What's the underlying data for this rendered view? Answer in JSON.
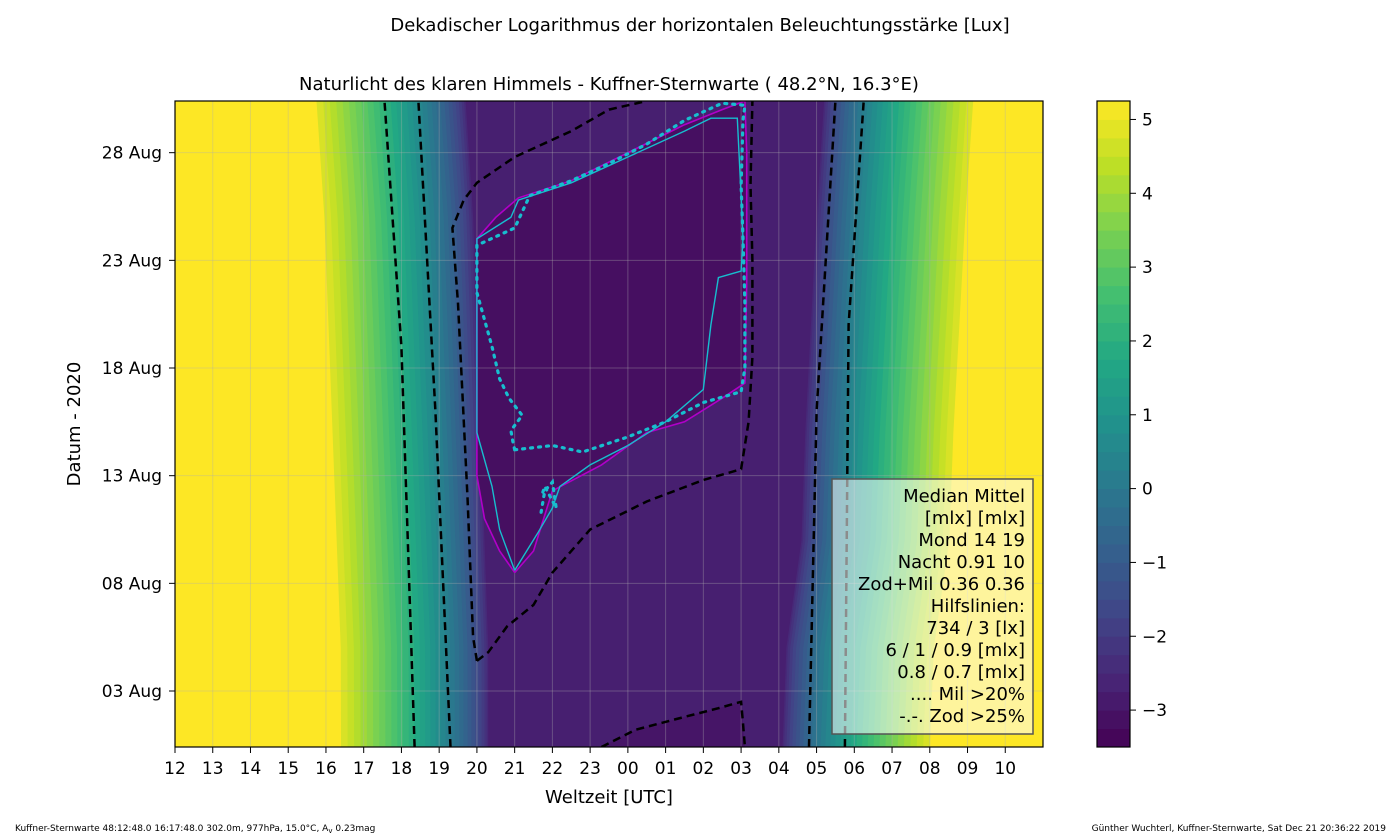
{
  "chart_data": {
    "type": "heatmap",
    "suptitle": "Dekadischer Logarithmus der horizontalen Beleuchtungsstärke [Lux]",
    "title": "Naturlicht des klaren Himmels - Kuffner-Sternwarte ( 48.2°N, 16.3°E)",
    "xlabel": "Weltzeit [UTC]",
    "ylabel": "Datum - 2020",
    "xlim": [
      12,
      35
    ],
    "x_ticks": [
      "12",
      "13",
      "14",
      "15",
      "16",
      "17",
      "18",
      "19",
      "20",
      "21",
      "22",
      "23",
      "00",
      "01",
      "02",
      "03",
      "04",
      "05",
      "06",
      "07",
      "08",
      "09",
      "10"
    ],
    "y_ticks": [
      "03 Aug",
      "08 Aug",
      "13 Aug",
      "18 Aug",
      "23 Aug",
      "28 Aug"
    ],
    "y_tick_days": [
      3,
      8,
      13,
      18,
      23,
      28
    ],
    "ylim_days": [
      0.4,
      30.4
    ],
    "colorbar": {
      "range": [
        -3.5,
        5.25
      ],
      "ticks": [
        "5",
        "4",
        "3",
        "2",
        "1",
        "0",
        "−1",
        "−2",
        "−3"
      ],
      "tick_values": [
        5,
        4,
        3,
        2,
        1,
        0,
        -1,
        -2,
        -3
      ],
      "colors": [
        "#440154",
        "#482475",
        "#414487",
        "#355f8d",
        "#2a788e",
        "#21918c",
        "#22a884",
        "#44bf70",
        "#7ad151",
        "#bddf26",
        "#fde725"
      ]
    },
    "band_edges_hours": [
      {
        "day": 0.4,
        "dusk": 20.0,
        "dawn": 28.4
      },
      {
        "day": 5.0,
        "dusk": 20.0,
        "dawn": 28.5
      },
      {
        "day": 10.0,
        "dusk": 19.9,
        "dawn": 28.9
      },
      {
        "day": 15.0,
        "dusk": 19.8,
        "dawn": 29.0
      },
      {
        "day": 20.0,
        "dusk": 19.7,
        "dawn": 29.15
      },
      {
        "day": 25.0,
        "dusk": 19.6,
        "dawn": 29.3
      },
      {
        "day": 30.4,
        "dusk": 19.4,
        "dawn": 29.5
      }
    ],
    "dashed_lines": [
      {
        "points": [
          [
            18.35,
            0.4
          ],
          [
            18.0,
            19.0
          ],
          [
            17.55,
            30.4
          ]
        ]
      },
      {
        "points": [
          [
            19.3,
            0.4
          ],
          [
            18.9,
            16.0
          ],
          [
            18.45,
            30.4
          ]
        ]
      },
      {
        "points": [
          [
            28.8,
            0.4
          ],
          [
            29.0,
            16.0
          ],
          [
            29.5,
            30.4
          ]
        ]
      },
      {
        "points": [
          [
            29.75,
            0.4
          ],
          [
            29.85,
            20.0
          ],
          [
            30.25,
            30.4
          ]
        ]
      },
      {
        "points": [
          [
            20.0,
            4.4
          ],
          [
            19.9,
            5.5
          ],
          [
            19.75,
            12.0
          ],
          [
            19.5,
            21.0
          ],
          [
            19.35,
            24.5
          ],
          [
            19.65,
            25.8
          ],
          [
            20.0,
            26.6
          ],
          [
            21.0,
            27.8
          ],
          [
            22.5,
            29.0
          ],
          [
            23.5,
            30.0
          ],
          [
            24.5,
            30.4
          ]
        ]
      },
      {
        "points": [
          [
            20.0,
            4.4
          ],
          [
            20.3,
            4.8
          ],
          [
            20.8,
            6.0
          ],
          [
            21.5,
            7.0
          ],
          [
            22.0,
            8.5
          ],
          [
            23.0,
            10.5
          ],
          [
            24.5,
            11.8
          ],
          [
            26.0,
            12.8
          ],
          [
            27.0,
            13.3
          ],
          [
            27.2,
            15.5
          ],
          [
            27.3,
            18.5
          ],
          [
            27.3,
            23.0
          ],
          [
            27.25,
            26.5
          ],
          [
            27.3,
            30.4
          ]
        ]
      },
      {
        "points": [
          [
            23.3,
            0.4
          ],
          [
            24.2,
            1.2
          ],
          [
            25.5,
            1.8
          ],
          [
            26.4,
            2.2
          ],
          [
            27.0,
            2.5
          ],
          [
            27.05,
            1.5
          ],
          [
            27.1,
            0.4
          ]
        ]
      }
    ],
    "mil_dotted": [
      [
        21.7,
        11.3
      ],
      [
        21.8,
        12.3
      ],
      [
        22.0,
        12.7
      ],
      [
        22.1,
        11.5
      ],
      [
        21.8,
        12.5
      ],
      [
        21.7,
        12.0
      ]
    ],
    "zod_dotted": [
      [
        21.0,
        14.2
      ],
      [
        22.0,
        14.4
      ],
      [
        22.8,
        14.1
      ],
      [
        24.0,
        14.8
      ],
      [
        25.0,
        15.5
      ],
      [
        26.0,
        16.4
      ],
      [
        27.0,
        16.9
      ],
      [
        27.1,
        18.0
      ],
      [
        27.1,
        21.0
      ],
      [
        27.05,
        24.0
      ],
      [
        27.0,
        26.5
      ],
      [
        27.05,
        29.5
      ],
      [
        27.1,
        30.2
      ],
      [
        26.5,
        30.3
      ],
      [
        25.5,
        29.5
      ],
      [
        24.5,
        28.4
      ],
      [
        23.5,
        27.5
      ],
      [
        22.5,
        26.7
      ],
      [
        21.4,
        26.0
      ],
      [
        21.0,
        24.5
      ],
      [
        20.0,
        23.7
      ],
      [
        20.0,
        21.5
      ],
      [
        20.4,
        19.0
      ],
      [
        20.6,
        17.5
      ],
      [
        20.85,
        16.6
      ],
      [
        21.2,
        15.8
      ],
      [
        20.9,
        15.1
      ],
      [
        20.95,
        14.6
      ],
      [
        21.0,
        14.2
      ]
    ],
    "mil_magenta": [
      [
        21.0,
        8.5
      ],
      [
        20.6,
        9.5
      ],
      [
        20.2,
        11.0
      ],
      [
        20.0,
        13.0
      ],
      [
        20.0,
        18.0
      ],
      [
        20.0,
        24.0
      ],
      [
        20.5,
        25.0
      ],
      [
        21.1,
        25.9
      ],
      [
        22.5,
        26.7
      ],
      [
        24.0,
        28.0
      ],
      [
        25.5,
        29.3
      ],
      [
        26.5,
        30.0
      ],
      [
        27.1,
        30.4
      ],
      [
        27.15,
        28.0
      ],
      [
        27.15,
        22.0
      ],
      [
        27.1,
        17.3
      ],
      [
        26.5,
        16.6
      ],
      [
        25.5,
        15.5
      ],
      [
        24.5,
        15.0
      ],
      [
        23.3,
        13.5
      ],
      [
        22.0,
        12.3
      ],
      [
        21.5,
        9.5
      ],
      [
        21.0,
        8.5
      ]
    ],
    "moon_cyan": [
      [
        21.0,
        8.6
      ],
      [
        20.6,
        10.5
      ],
      [
        20.4,
        12.5
      ],
      [
        20.0,
        15.0
      ],
      [
        20.0,
        24.0
      ],
      [
        20.9,
        25.0
      ],
      [
        21.1,
        25.8
      ],
      [
        22.5,
        26.6
      ],
      [
        24.0,
        27.8
      ],
      [
        25.5,
        29.0
      ],
      [
        26.2,
        29.6
      ],
      [
        26.9,
        29.6
      ],
      [
        27.0,
        26.0
      ],
      [
        27.05,
        24.0
      ],
      [
        27.0,
        22.5
      ],
      [
        26.4,
        22.2
      ],
      [
        26.2,
        20.0
      ],
      [
        26.0,
        17.0
      ],
      [
        25.0,
        15.5
      ],
      [
        24.0,
        14.4
      ],
      [
        23.0,
        13.5
      ],
      [
        22.2,
        12.5
      ],
      [
        22.0,
        11.5
      ],
      [
        21.6,
        10.3
      ],
      [
        21.0,
        8.6
      ]
    ],
    "legend": {
      "lines": [
        "Median Mittel",
        "[mlx]  [mlx]",
        "Mond   14  19",
        "Nacht 0.91  10",
        "Zod+Mil 0.36  0.36",
        "Hilfslinien:",
        "734 / 3  [lx]",
        "6 /  1 / 0.9 [mlx]",
        "0.8 / 0.7 [mlx]",
        ".... Mil >20%",
        "-.-. Zod >25%"
      ],
      "placement": "lower-right"
    },
    "footer_left": "Kuffner-Sternwarte 48:12:48.0 16:17:48.0 302.0m,  977hPa, 15.0°C, A",
    "footer_left_sub": "v",
    "footer_left_end": " 0.23mag",
    "footer_right": "Günther Wuchterl, Kuffner-Sternwarte, Sat Dec 21 20:36:22 2019",
    "grid": true
  }
}
